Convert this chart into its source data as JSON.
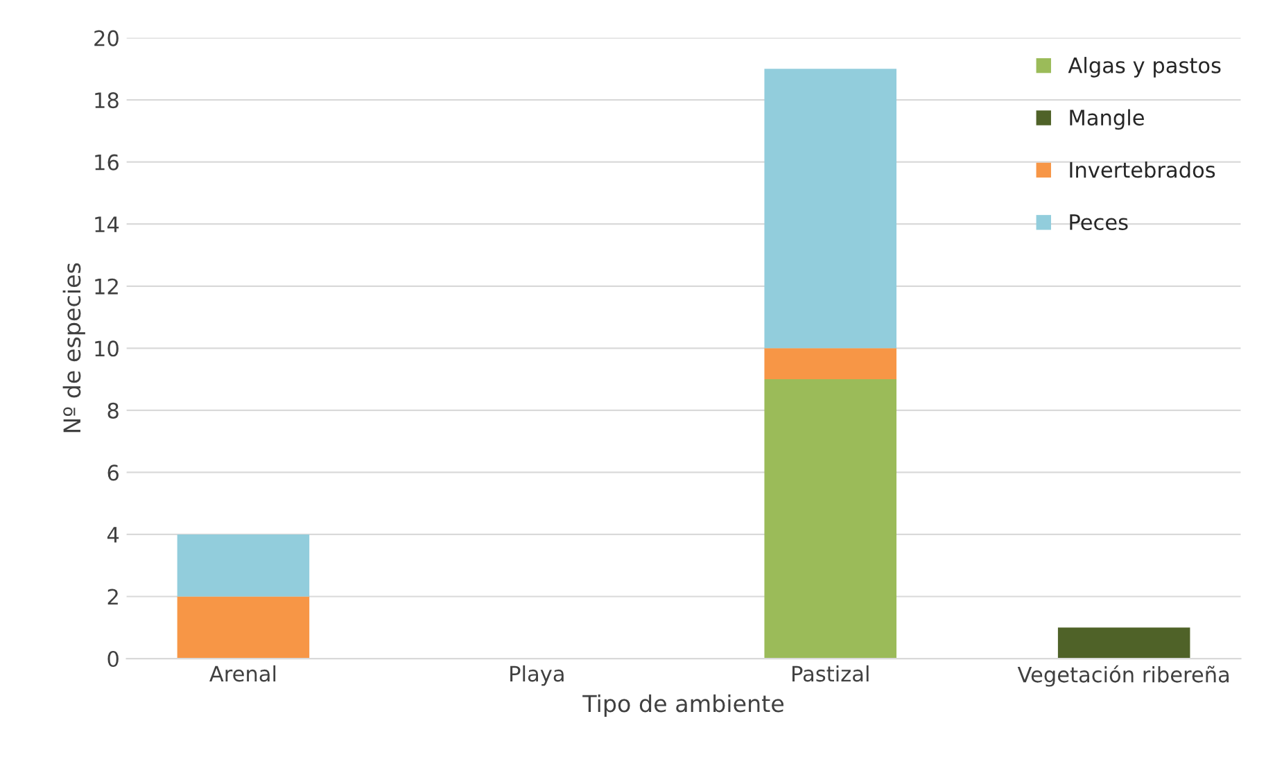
{
  "chart_data": {
    "type": "bar",
    "stacked": true,
    "xlabel": "Tipo de ambiente",
    "ylabel": "Nº de especies",
    "categories": [
      "Arenal",
      "Playa",
      "Pastizal",
      "Vegetación ribereña"
    ],
    "series": [
      {
        "name": "Algas y pastos",
        "color": "#9bbb59",
        "values": [
          0,
          0,
          9,
          0
        ]
      },
      {
        "name": "Mangle",
        "color": "#4f6228",
        "values": [
          0,
          0,
          0,
          1
        ]
      },
      {
        "name": "Invertebrados",
        "color": "#f79646",
        "values": [
          2,
          0,
          1,
          0
        ]
      },
      {
        "name": "Peces",
        "color": "#92cddc",
        "values": [
          2,
          0,
          9,
          0
        ]
      }
    ],
    "ylim": [
      0,
      20
    ],
    "yticks": [
      0,
      2,
      4,
      6,
      8,
      10,
      12,
      14,
      16,
      18,
      20
    ],
    "grid": "y",
    "legend": "top right"
  }
}
